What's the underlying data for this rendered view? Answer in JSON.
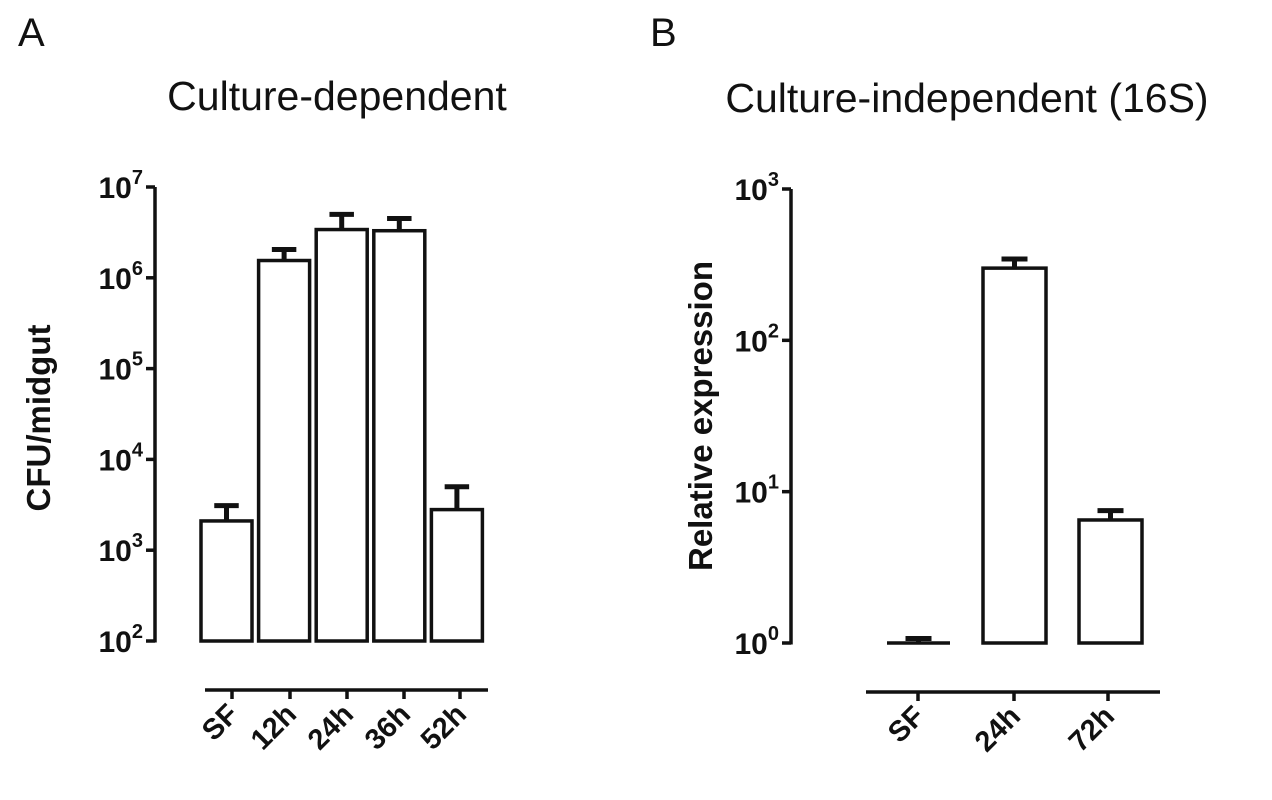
{
  "panels": {
    "a": {
      "letter": "A"
    },
    "b": {
      "letter": "B"
    }
  },
  "chart_data": [
    {
      "type": "bar",
      "title": "Culture-dependent",
      "ylabel": "CFU/midgut",
      "yscale": "log",
      "ylim": [
        100,
        10000000
      ],
      "yticks": [
        {
          "base": "10",
          "exp": "2"
        },
        {
          "base": "10",
          "exp": "3"
        },
        {
          "base": "10",
          "exp": "4"
        },
        {
          "base": "10",
          "exp": "5"
        },
        {
          "base": "10",
          "exp": "6"
        },
        {
          "base": "10",
          "exp": "7"
        }
      ],
      "categories": [
        "SF",
        "12h",
        "24h",
        "36h",
        "52h"
      ],
      "values": [
        2100,
        1550000,
        3400000,
        3300000,
        2800
      ],
      "errors_upper": [
        3100,
        2050000,
        5000000,
        4500000,
        5000
      ],
      "grid": false
    },
    {
      "type": "bar",
      "title": "Culture-independent (16S)",
      "ylabel": "Relative expression",
      "yscale": "log",
      "ylim": [
        1,
        1000
      ],
      "yticks": [
        {
          "base": "10",
          "exp": "0"
        },
        {
          "base": "10",
          "exp": "1"
        },
        {
          "base": "10",
          "exp": "2"
        },
        {
          "base": "10",
          "exp": "3"
        }
      ],
      "categories": [
        "SF",
        "24h",
        "72h"
      ],
      "values": [
        1,
        300,
        6.5
      ],
      "errors_upper": [
        1.07,
        345,
        7.5
      ],
      "grid": false
    }
  ]
}
